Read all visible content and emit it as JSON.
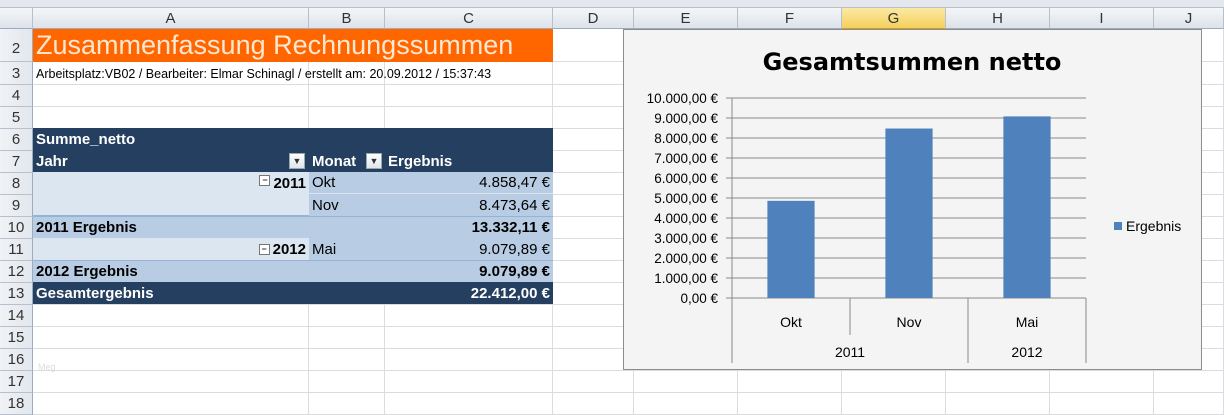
{
  "columns": [
    "A",
    "B",
    "C",
    "D",
    "E",
    "F",
    "G",
    "H",
    "I",
    "J"
  ],
  "selected_column": "G",
  "rows": [
    "2",
    "3",
    "4",
    "5",
    "6",
    "7",
    "8",
    "9",
    "10",
    "11",
    "12",
    "13",
    "14",
    "15",
    "16",
    "17",
    "18"
  ],
  "sheet": {
    "title": "Zusammenfassung Rechnungssummen",
    "subtitle": "Arbeitsplatz:VB02 / Bearbeiter: Elmar Schinagl / erstellt am: 20.09.2012 / 15:37:43",
    "title_color": "#ff6600",
    "watermark": "Meg"
  },
  "pivot": {
    "data_field": "Summe_netto",
    "row_field": "Jahr",
    "col_field": "Monat",
    "value_header": "Ergebnis",
    "groups": [
      {
        "year": "2011",
        "items": [
          {
            "month": "Okt",
            "value": "4.858,47 €"
          },
          {
            "month": "Nov",
            "value": "8.473,64 €"
          }
        ],
        "subtotal_label": "2011 Ergebnis",
        "subtotal": "13.332,11 €"
      },
      {
        "year": "2012",
        "items": [
          {
            "month": "Mai",
            "value": "9.079,89 €"
          }
        ],
        "subtotal_label": "2012 Ergebnis",
        "subtotal": "9.079,89 €"
      }
    ],
    "grand_label": "Gesamtergebnis",
    "grand_total": "22.412,00 €",
    "colors": {
      "dark": "#243f60",
      "light": "#dce6f1",
      "mid": "#b8cce4"
    }
  },
  "chart_data": {
    "type": "bar",
    "title": "Gesamtsummen netto",
    "categories": [
      "Okt",
      "Nov",
      "Mai"
    ],
    "category_groups": [
      {
        "label": "2011",
        "span": 2
      },
      {
        "label": "2012",
        "span": 1
      }
    ],
    "series": [
      {
        "name": "Ergebnis",
        "values": [
          4858.47,
          8473.64,
          9079.89
        ],
        "color": "#4f81bd"
      }
    ],
    "ylim": [
      0,
      10000
    ],
    "yticks": [
      "0,00 €",
      "1.000,00 €",
      "2.000,00 €",
      "3.000,00 €",
      "4.000,00 €",
      "5.000,00 €",
      "6.000,00 €",
      "7.000,00 €",
      "8.000,00 €",
      "9.000,00 €",
      "10.000,00 €"
    ],
    "grid": true,
    "legend": "right"
  }
}
